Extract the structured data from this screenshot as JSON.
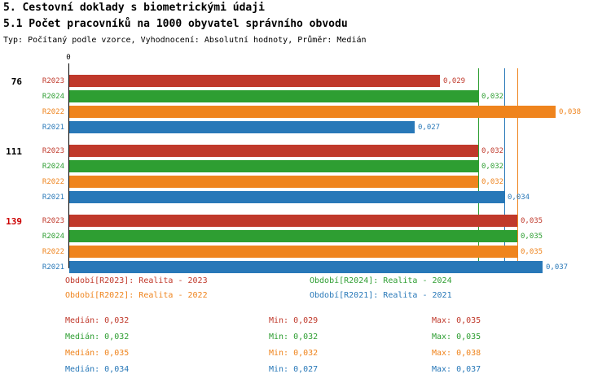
{
  "header": {
    "title": "5. Cestovní doklady s biometrickými údaji",
    "subtitle": "5.1 Počet pracovníků na 1000 obyvatel správního obvodu",
    "meta": "Typ: Počítaný podle vzorce, Vyhodnocení: Absolutní hodnoty, Průměr: Medián"
  },
  "colors": {
    "R2023": "#c0392b",
    "R2024": "#2e9e32",
    "R2022": "#ef841d",
    "R2021": "#2878b8",
    "highlight_group": "#cc0000",
    "text": "#000000"
  },
  "chart_data": {
    "type": "bar",
    "orientation": "horizontal",
    "title": "5.1 Počet pracovníků na 1000 obyvatel správního obvodu",
    "x_axis": {
      "min": 0,
      "max": 0.0395,
      "zero_label": "0",
      "grid": false
    },
    "series_order": [
      "R2023",
      "R2024",
      "R2022",
      "R2021"
    ],
    "groups": [
      {
        "label": "76",
        "label_color": "#000000",
        "values": {
          "R2023": 0.029,
          "R2024": 0.032,
          "R2022": 0.038,
          "R2021": 0.027
        },
        "display": {
          "R2023": "0,029",
          "R2024": "0,032",
          "R2022": "0,038",
          "R2021": "0,027"
        }
      },
      {
        "label": "111",
        "label_color": "#000000",
        "values": {
          "R2023": 0.032,
          "R2024": 0.032,
          "R2022": 0.032,
          "R2021": 0.034
        },
        "display": {
          "R2023": "0,032",
          "R2024": "0,032",
          "R2022": "0,032",
          "R2021": "0,034"
        }
      },
      {
        "label": "139",
        "label_color": "#cc0000",
        "values": {
          "R2023": 0.035,
          "R2024": 0.035,
          "R2022": 0.035,
          "R2021": 0.037
        },
        "display": {
          "R2023": "0,035",
          "R2024": "0,035",
          "R2022": "0,035",
          "R2021": "0,037"
        }
      }
    ],
    "median_lines": [
      {
        "series": "R2023",
        "value": 0.032
      },
      {
        "series": "R2024",
        "value": 0.032
      },
      {
        "series": "R2022",
        "value": 0.035
      },
      {
        "series": "R2021",
        "value": 0.034
      }
    ]
  },
  "legend": {
    "items": [
      {
        "series": "R2023",
        "label": "Období[R2023]: Realita - 2023"
      },
      {
        "series": "R2024",
        "label": "Období[R2024]: Realita - 2024"
      },
      {
        "series": "R2022",
        "label": "Období[R2022]: Realita - 2022"
      },
      {
        "series": "R2021",
        "label": "Období[R2021]: Realita - 2021"
      }
    ]
  },
  "stats": {
    "rows": [
      {
        "series": "R2023",
        "median_text": "Medián: 0,032",
        "min_text": "Min: 0,029",
        "max_text": "Max: 0,035"
      },
      {
        "series": "R2024",
        "median_text": "Medián: 0,032",
        "min_text": "Min: 0,032",
        "max_text": "Max: 0,035"
      },
      {
        "series": "R2022",
        "median_text": "Medián: 0,035",
        "min_text": "Min: 0,032",
        "max_text": "Max: 0,038"
      },
      {
        "series": "R2021",
        "median_text": "Medián: 0,034",
        "min_text": "Min: 0,027",
        "max_text": "Max: 0,037"
      }
    ]
  }
}
